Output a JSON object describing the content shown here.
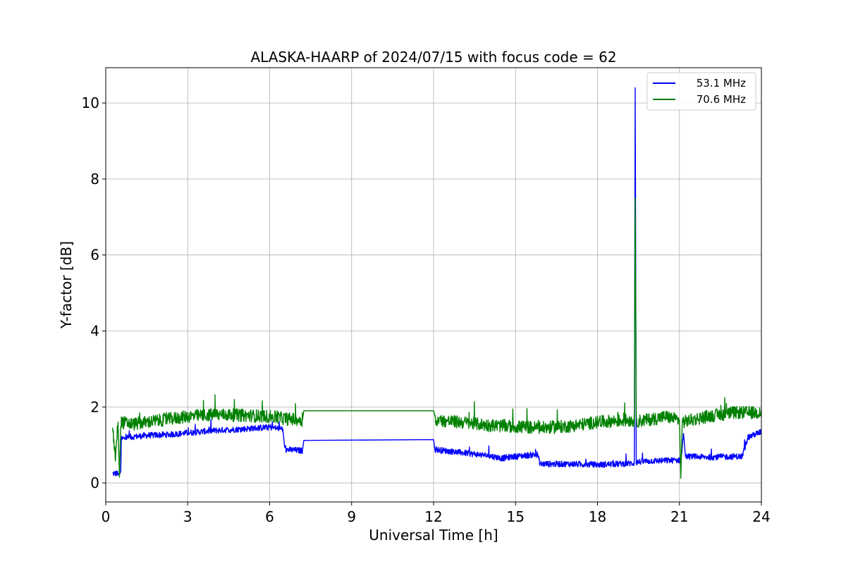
{
  "chart_data": {
    "type": "line",
    "title": "ALASKA-HAARP of 2024/07/15 with focus code = 62",
    "xlabel": "Universal Time [h]",
    "ylabel": "Y-factor [dB]",
    "xlim": [
      0,
      24
    ],
    "ylim": [
      -0.5,
      10.93
    ],
    "xticks": [
      0,
      3,
      6,
      9,
      12,
      15,
      18,
      21,
      24
    ],
    "xtick_labels": [
      "0",
      "3",
      "6",
      "9",
      "12",
      "15",
      "18",
      "21",
      "24"
    ],
    "yticks": [
      0,
      2,
      4,
      6,
      8,
      10
    ],
    "ytick_labels": [
      "0",
      "2",
      "4",
      "6",
      "8",
      "10"
    ],
    "grid": true,
    "legend_position": "top-right",
    "series": [
      {
        "name": "53.1 MHz",
        "color": "#0000ff",
        "noise": 0.08,
        "points": [
          [
            0.25,
            0.25
          ],
          [
            0.45,
            0.25
          ],
          [
            0.5,
            0.22
          ],
          [
            0.55,
            0.3
          ],
          [
            0.57,
            1.15
          ],
          [
            0.8,
            1.2
          ],
          [
            1.5,
            1.25
          ],
          [
            2.5,
            1.28
          ],
          [
            3.0,
            1.32
          ],
          [
            4.0,
            1.38
          ],
          [
            5.0,
            1.42
          ],
          [
            6.0,
            1.47
          ],
          [
            6.48,
            1.42
          ],
          [
            6.55,
            0.88
          ],
          [
            7.2,
            0.85
          ],
          [
            7.25,
            1.12
          ],
          [
            12.0,
            1.14
          ],
          [
            12.05,
            0.88
          ],
          [
            13.0,
            0.8
          ],
          [
            14.0,
            0.72
          ],
          [
            14.5,
            0.65
          ],
          [
            15.0,
            0.7
          ],
          [
            15.8,
            0.75
          ],
          [
            15.9,
            0.5
          ],
          [
            17.0,
            0.5
          ],
          [
            18.0,
            0.48
          ],
          [
            19.35,
            0.52
          ],
          [
            19.38,
            10.4
          ],
          [
            19.42,
            0.55
          ],
          [
            20.0,
            0.58
          ],
          [
            21.0,
            0.6
          ],
          [
            21.05,
            0.55
          ],
          [
            21.15,
            1.3
          ],
          [
            21.22,
            0.7
          ],
          [
            22.0,
            0.68
          ],
          [
            23.3,
            0.7
          ],
          [
            23.5,
            1.2
          ],
          [
            24.0,
            1.35
          ]
        ]
      },
      {
        "name": "70.6 MHz",
        "color": "#008000",
        "noise": 0.17,
        "points": [
          [
            0.25,
            1.5
          ],
          [
            0.35,
            0.7
          ],
          [
            0.45,
            1.6
          ],
          [
            0.5,
            0.15
          ],
          [
            0.55,
            1.6
          ],
          [
            1.0,
            1.55
          ],
          [
            2.0,
            1.65
          ],
          [
            3.0,
            1.75
          ],
          [
            4.0,
            1.8
          ],
          [
            5.0,
            1.78
          ],
          [
            6.0,
            1.75
          ],
          [
            6.5,
            1.7
          ],
          [
            7.2,
            1.65
          ],
          [
            7.25,
            1.9
          ],
          [
            12.0,
            1.9
          ],
          [
            12.05,
            1.65
          ],
          [
            13.0,
            1.6
          ],
          [
            14.0,
            1.52
          ],
          [
            15.0,
            1.48
          ],
          [
            16.0,
            1.45
          ],
          [
            17.0,
            1.5
          ],
          [
            18.0,
            1.6
          ],
          [
            19.0,
            1.65
          ],
          [
            19.35,
            1.65
          ],
          [
            19.38,
            7.5
          ],
          [
            19.42,
            1.62
          ],
          [
            20.0,
            1.68
          ],
          [
            20.5,
            1.75
          ],
          [
            21.0,
            1.65
          ],
          [
            21.05,
            0.12
          ],
          [
            21.1,
            1.6
          ],
          [
            22.0,
            1.75
          ],
          [
            23.0,
            1.85
          ],
          [
            24.0,
            1.85
          ]
        ]
      }
    ]
  }
}
